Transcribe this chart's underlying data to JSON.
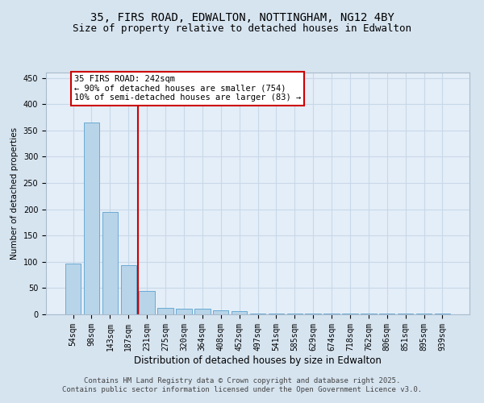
{
  "title_line1": "35, FIRS ROAD, EDWALTON, NOTTINGHAM, NG12 4BY",
  "title_line2": "Size of property relative to detached houses in Edwalton",
  "xlabel": "Distribution of detached houses by size in Edwalton",
  "ylabel": "Number of detached properties",
  "categories": [
    "54sqm",
    "98sqm",
    "143sqm",
    "187sqm",
    "231sqm",
    "275sqm",
    "320sqm",
    "364sqm",
    "408sqm",
    "452sqm",
    "497sqm",
    "541sqm",
    "585sqm",
    "629sqm",
    "674sqm",
    "718sqm",
    "762sqm",
    "806sqm",
    "851sqm",
    "895sqm",
    "939sqm"
  ],
  "values": [
    97,
    365,
    195,
    93,
    45,
    13,
    10,
    10,
    8,
    6,
    1,
    1,
    1,
    1,
    1,
    1,
    1,
    1,
    1,
    1,
    1
  ],
  "bar_color": "#b8d4e8",
  "bar_edge_color": "#6aaad4",
  "vline_x": 3.5,
  "vline_color": "#cc0000",
  "annotation_text": "35 FIRS ROAD: 242sqm\n← 90% of detached houses are smaller (754)\n10% of semi-detached houses are larger (83) →",
  "annotation_box_color": "#ffffff",
  "annotation_box_edge": "#cc0000",
  "ylim": [
    0,
    460
  ],
  "yticks": [
    0,
    50,
    100,
    150,
    200,
    250,
    300,
    350,
    400,
    450
  ],
  "grid_color": "#c8d8e8",
  "background_color": "#d6e4f0",
  "plot_bg_color": "#e4eef8",
  "footer_text": "Contains HM Land Registry data © Crown copyright and database right 2025.\nContains public sector information licensed under the Open Government Licence v3.0.",
  "title_fontsize": 10,
  "subtitle_fontsize": 9,
  "tick_fontsize": 7,
  "xlabel_fontsize": 8.5,
  "ylabel_fontsize": 7.5,
  "footer_fontsize": 6.5,
  "annot_fontsize": 7.5
}
